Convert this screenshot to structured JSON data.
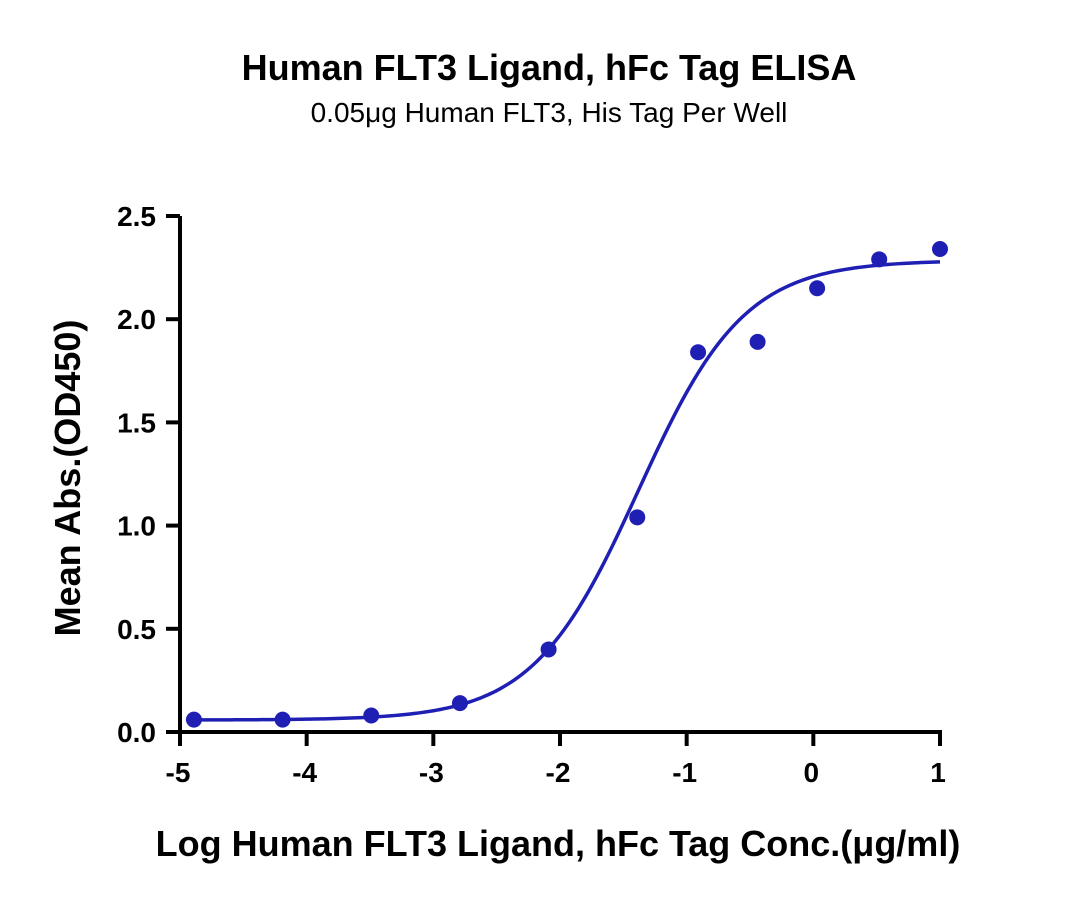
{
  "chart_data": {
    "type": "scatter",
    "title": "Human FLT3 Ligand, hFc Tag ELISA",
    "subtitle": "0.05μg Human FLT3, His Tag Per Well",
    "xlabel": "Log Human FLT3 Ligand, hFc Tag Conc.(μg/ml)",
    "ylabel": "Mean Abs.(OD450)",
    "xlim": [
      -5,
      1
    ],
    "ylim": [
      0,
      2.5
    ],
    "xticks": [
      -5,
      -4,
      -3,
      -2,
      -1,
      0,
      1
    ],
    "xtick_labels": [
      "-5",
      "-4",
      "-3",
      "-2",
      "-1",
      "0",
      "1"
    ],
    "yticks": [
      0,
      0.5,
      1.0,
      1.5,
      2.0,
      2.5
    ],
    "ytick_labels": [
      "0.0",
      "0.5",
      "1.0",
      "1.5",
      "2.0",
      "2.5"
    ],
    "grid": false,
    "color": "#1f1fb4",
    "series": [
      {
        "x": [
          -4.89,
          -4.19,
          -3.49,
          -2.79,
          -2.09,
          -1.39,
          -0.91,
          -0.44,
          0.03,
          0.52,
          1.0
        ],
        "y": [
          0.06,
          0.06,
          0.08,
          0.14,
          0.4,
          1.04,
          1.84,
          1.89,
          2.15,
          2.29,
          2.34
        ]
      }
    ],
    "fit_curve": {
      "model": "4PL",
      "bottom": 0.058,
      "top": 2.285,
      "log_ec50": -1.38,
      "hill_slope": 1.04
    }
  }
}
